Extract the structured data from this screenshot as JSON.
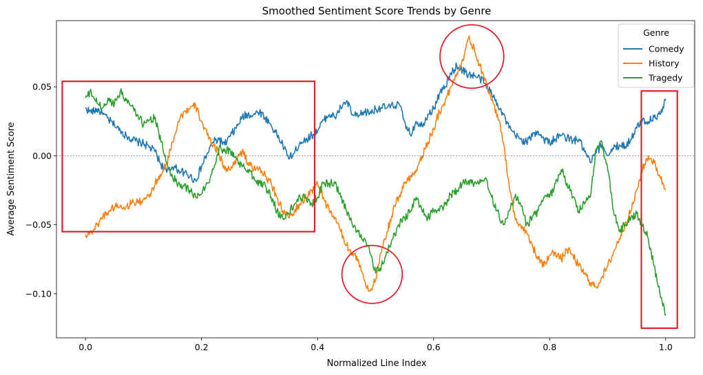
{
  "chart_data": {
    "type": "line",
    "title": "Smoothed Sentiment Score Trends by Genre",
    "xlabel": "Normalized Line Index",
    "ylabel": "Average Sentiment Score",
    "xlim": [
      -0.05,
      1.05
    ],
    "ylim": [
      -0.132,
      0.098
    ],
    "xticks": [
      0.0,
      0.2,
      0.4,
      0.6,
      0.8,
      1.0
    ],
    "xtick_labels": [
      "0.0",
      "0.2",
      "0.4",
      "0.6",
      "0.8",
      "1.0"
    ],
    "yticks": [
      -0.1,
      -0.05,
      0.0,
      0.05
    ],
    "ytick_labels": [
      "−0.10",
      "−0.05",
      "0.00",
      "0.05"
    ],
    "zero_line": true,
    "legend": {
      "title": "Genre",
      "position": "top-right"
    },
    "series": [
      {
        "name": "Comedy",
        "color": "#1f77b4",
        "x": [
          0.0,
          0.01,
          0.02,
          0.03,
          0.04,
          0.05,
          0.06,
          0.07,
          0.08,
          0.09,
          0.1,
          0.11,
          0.12,
          0.13,
          0.14,
          0.15,
          0.16,
          0.17,
          0.18,
          0.19,
          0.2,
          0.21,
          0.22,
          0.23,
          0.24,
          0.25,
          0.26,
          0.27,
          0.28,
          0.29,
          0.3,
          0.31,
          0.32,
          0.33,
          0.34,
          0.35,
          0.36,
          0.37,
          0.38,
          0.39,
          0.4,
          0.41,
          0.42,
          0.43,
          0.44,
          0.45,
          0.46,
          0.47,
          0.48,
          0.49,
          0.5,
          0.51,
          0.52,
          0.53,
          0.54,
          0.55,
          0.56,
          0.57,
          0.58,
          0.59,
          0.6,
          0.61,
          0.62,
          0.63,
          0.64,
          0.65,
          0.66,
          0.67,
          0.68,
          0.69,
          0.7,
          0.71,
          0.72,
          0.73,
          0.74,
          0.75,
          0.76,
          0.77,
          0.78,
          0.79,
          0.8,
          0.81,
          0.82,
          0.83,
          0.84,
          0.85,
          0.86,
          0.87,
          0.88,
          0.89,
          0.9,
          0.91,
          0.92,
          0.93,
          0.94,
          0.95,
          0.96,
          0.97,
          0.98,
          0.99,
          1.0
        ],
        "y": [
          0.035,
          0.031,
          0.034,
          0.03,
          0.026,
          0.022,
          0.018,
          0.015,
          0.012,
          0.01,
          0.009,
          0.006,
          0.003,
          -0.006,
          -0.012,
          -0.008,
          -0.01,
          -0.012,
          -0.015,
          -0.018,
          -0.008,
          0.002,
          0.01,
          0.012,
          0.008,
          0.015,
          0.02,
          0.028,
          0.03,
          0.03,
          0.032,
          0.028,
          0.022,
          0.015,
          0.008,
          -0.002,
          0.002,
          0.01,
          0.012,
          0.015,
          0.018,
          0.026,
          0.03,
          0.028,
          0.035,
          0.04,
          0.03,
          0.028,
          0.032,
          0.031,
          0.034,
          0.035,
          0.035,
          0.036,
          0.038,
          0.025,
          0.015,
          0.025,
          0.022,
          0.03,
          0.034,
          0.045,
          0.05,
          0.06,
          0.065,
          0.062,
          0.059,
          0.058,
          0.056,
          0.052,
          0.045,
          0.038,
          0.03,
          0.02,
          0.015,
          0.012,
          0.01,
          0.014,
          0.018,
          0.012,
          0.01,
          0.012,
          0.015,
          0.013,
          0.011,
          0.012,
          0.003,
          -0.005,
          0.002,
          0.008,
          0.0,
          0.005,
          0.008,
          0.007,
          0.012,
          0.02,
          0.026,
          0.025,
          0.028,
          0.03,
          0.04
        ]
      },
      {
        "name": "History",
        "color": "#ff7f0e",
        "x": [
          0.0,
          0.01,
          0.02,
          0.03,
          0.04,
          0.05,
          0.06,
          0.07,
          0.08,
          0.09,
          0.1,
          0.11,
          0.12,
          0.13,
          0.14,
          0.15,
          0.16,
          0.17,
          0.18,
          0.19,
          0.2,
          0.21,
          0.22,
          0.23,
          0.24,
          0.25,
          0.26,
          0.27,
          0.28,
          0.29,
          0.3,
          0.31,
          0.32,
          0.33,
          0.34,
          0.35,
          0.36,
          0.37,
          0.38,
          0.39,
          0.4,
          0.41,
          0.42,
          0.43,
          0.44,
          0.45,
          0.46,
          0.47,
          0.48,
          0.49,
          0.5,
          0.51,
          0.52,
          0.53,
          0.54,
          0.55,
          0.56,
          0.57,
          0.58,
          0.59,
          0.6,
          0.61,
          0.62,
          0.63,
          0.64,
          0.65,
          0.66,
          0.67,
          0.68,
          0.69,
          0.7,
          0.71,
          0.72,
          0.73,
          0.74,
          0.75,
          0.76,
          0.77,
          0.78,
          0.79,
          0.8,
          0.81,
          0.82,
          0.83,
          0.84,
          0.85,
          0.86,
          0.87,
          0.88,
          0.89,
          0.9,
          0.91,
          0.92,
          0.93,
          0.94,
          0.95,
          0.96,
          0.97,
          0.98,
          0.99,
          1.0
        ],
        "y": [
          -0.057,
          -0.055,
          -0.05,
          -0.044,
          -0.04,
          -0.037,
          -0.036,
          -0.037,
          -0.034,
          -0.034,
          -0.032,
          -0.03,
          -0.02,
          -0.015,
          -0.005,
          0.01,
          0.025,
          0.032,
          0.034,
          0.036,
          0.025,
          0.015,
          0.008,
          0.002,
          -0.01,
          -0.01,
          -0.002,
          0.003,
          -0.005,
          -0.01,
          -0.008,
          -0.015,
          -0.02,
          -0.03,
          -0.04,
          -0.045,
          -0.04,
          -0.035,
          -0.03,
          -0.025,
          -0.02,
          -0.03,
          -0.04,
          -0.045,
          -0.055,
          -0.065,
          -0.07,
          -0.075,
          -0.09,
          -0.098,
          -0.09,
          -0.07,
          -0.055,
          -0.04,
          -0.03,
          -0.02,
          -0.015,
          -0.01,
          0.0,
          0.01,
          0.02,
          0.032,
          0.04,
          0.05,
          0.06,
          0.07,
          0.085,
          0.078,
          0.065,
          0.055,
          0.04,
          0.03,
          0.01,
          -0.02,
          -0.045,
          -0.05,
          -0.055,
          -0.065,
          -0.075,
          -0.08,
          -0.072,
          -0.07,
          -0.075,
          -0.068,
          -0.072,
          -0.08,
          -0.085,
          -0.092,
          -0.095,
          -0.088,
          -0.08,
          -0.07,
          -0.06,
          -0.05,
          -0.04,
          -0.025,
          -0.01,
          0.0,
          -0.005,
          -0.015,
          -0.025
        ]
      },
      {
        "name": "Tragedy",
        "color": "#2ca02c",
        "x": [
          0.0,
          0.01,
          0.02,
          0.03,
          0.04,
          0.05,
          0.06,
          0.07,
          0.08,
          0.09,
          0.1,
          0.11,
          0.12,
          0.13,
          0.14,
          0.15,
          0.16,
          0.17,
          0.18,
          0.19,
          0.2,
          0.21,
          0.22,
          0.23,
          0.24,
          0.25,
          0.26,
          0.27,
          0.28,
          0.29,
          0.3,
          0.31,
          0.32,
          0.33,
          0.34,
          0.35,
          0.36,
          0.37,
          0.38,
          0.39,
          0.4,
          0.41,
          0.42,
          0.43,
          0.44,
          0.45,
          0.46,
          0.47,
          0.48,
          0.49,
          0.5,
          0.51,
          0.52,
          0.53,
          0.54,
          0.55,
          0.56,
          0.57,
          0.58,
          0.59,
          0.6,
          0.61,
          0.62,
          0.63,
          0.64,
          0.65,
          0.66,
          0.67,
          0.68,
          0.69,
          0.7,
          0.71,
          0.72,
          0.73,
          0.74,
          0.75,
          0.76,
          0.77,
          0.78,
          0.79,
          0.8,
          0.81,
          0.82,
          0.83,
          0.84,
          0.85,
          0.86,
          0.87,
          0.88,
          0.89,
          0.9,
          0.91,
          0.92,
          0.93,
          0.94,
          0.95,
          0.96,
          0.97,
          0.98,
          0.99,
          1.0
        ],
        "y": [
          0.042,
          0.046,
          0.038,
          0.035,
          0.04,
          0.038,
          0.047,
          0.04,
          0.036,
          0.03,
          0.022,
          0.026,
          0.028,
          0.01,
          -0.005,
          -0.015,
          -0.02,
          -0.022,
          -0.025,
          -0.03,
          -0.028,
          -0.02,
          -0.01,
          0.005,
          0.005,
          0.003,
          -0.002,
          -0.008,
          -0.01,
          -0.015,
          -0.02,
          -0.022,
          -0.03,
          -0.04,
          -0.045,
          -0.042,
          -0.035,
          -0.03,
          -0.03,
          -0.035,
          -0.03,
          -0.02,
          -0.02,
          -0.02,
          -0.03,
          -0.04,
          -0.05,
          -0.055,
          -0.06,
          -0.07,
          -0.085,
          -0.08,
          -0.07,
          -0.06,
          -0.05,
          -0.045,
          -0.04,
          -0.03,
          -0.04,
          -0.045,
          -0.04,
          -0.04,
          -0.035,
          -0.028,
          -0.025,
          -0.02,
          -0.018,
          -0.02,
          -0.017,
          -0.016,
          -0.03,
          -0.04,
          -0.05,
          -0.04,
          -0.03,
          -0.035,
          -0.05,
          -0.045,
          -0.04,
          -0.03,
          -0.03,
          -0.02,
          -0.01,
          -0.02,
          -0.03,
          -0.04,
          -0.035,
          -0.03,
          0.005,
          0.01,
          -0.01,
          -0.04,
          -0.055,
          -0.05,
          -0.045,
          -0.042,
          -0.05,
          -0.06,
          -0.08,
          -0.1,
          -0.115
        ]
      }
    ],
    "annotations": [
      {
        "shape": "rect",
        "color": "#e0202c",
        "x0": -0.04,
        "x1": 0.395,
        "y0": -0.055,
        "y1": 0.054
      },
      {
        "shape": "ellipse",
        "color": "#e0202c",
        "cx": 0.666,
        "cy": 0.072,
        "rx": 0.055,
        "ry": 0.023
      },
      {
        "shape": "ellipse",
        "color": "#e0202c",
        "cx": 0.494,
        "cy": -0.086,
        "rx": 0.052,
        "ry": 0.021
      },
      {
        "shape": "rect",
        "color": "#e0202c",
        "x0": 0.958,
        "x1": 1.02,
        "y0": -0.125,
        "y1": 0.047
      }
    ]
  }
}
